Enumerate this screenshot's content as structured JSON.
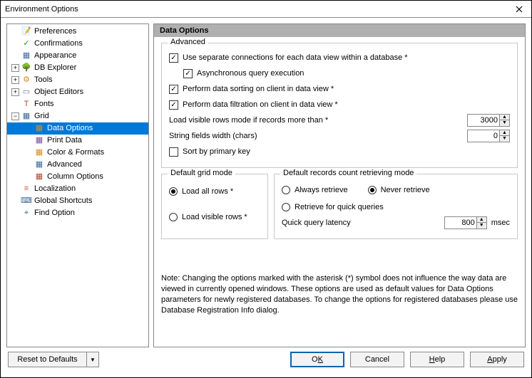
{
  "window": {
    "title": "Environment Options"
  },
  "tree": {
    "items": [
      {
        "label": "Preferences",
        "level": 0,
        "expander": "",
        "icon": "📝",
        "icon_color": "#d08030"
      },
      {
        "label": "Confirmations",
        "level": 0,
        "expander": "",
        "icon": "✓",
        "icon_color": "#2a8a2a"
      },
      {
        "label": "Appearance",
        "level": 0,
        "expander": "",
        "icon": "▦",
        "icon_color": "#4a6aa0"
      },
      {
        "label": "DB Explorer",
        "level": 0,
        "expander": "+",
        "icon": "🌳",
        "icon_color": "#3a7a3a"
      },
      {
        "label": "Tools",
        "level": 0,
        "expander": "+",
        "icon": "⚙",
        "icon_color": "#d88a20"
      },
      {
        "label": "Object Editors",
        "level": 0,
        "expander": "+",
        "icon": "▭",
        "icon_color": "#5a7a9a"
      },
      {
        "label": "Fonts",
        "level": 0,
        "expander": "",
        "icon": "T",
        "icon_color": "#b04a3a"
      },
      {
        "label": "Grid",
        "level": 0,
        "expander": "−",
        "icon": "▦",
        "icon_color": "#3a6a9a"
      },
      {
        "label": "Data Options",
        "level": 1,
        "expander": "",
        "icon": "▦",
        "icon_color": "#d88a20",
        "selected": true
      },
      {
        "label": "Print Data",
        "level": 1,
        "expander": "",
        "icon": "▦",
        "icon_color": "#7a4a9a"
      },
      {
        "label": "Color & Formats",
        "level": 1,
        "expander": "",
        "icon": "▦",
        "icon_color": "#d88a20"
      },
      {
        "label": "Advanced",
        "level": 1,
        "expander": "",
        "icon": "▦",
        "icon_color": "#3a6a9a"
      },
      {
        "label": "Column Options",
        "level": 1,
        "expander": "",
        "icon": "▦",
        "icon_color": "#b04a3a"
      },
      {
        "label": "Localization",
        "level": 0,
        "expander": "",
        "icon": "≡",
        "icon_color": "#c05a3a"
      },
      {
        "label": "Global Shortcuts",
        "level": 0,
        "expander": "",
        "icon": "⌨",
        "icon_color": "#3a6a9a"
      },
      {
        "label": "Find Option",
        "level": 0,
        "expander": "",
        "icon": "⌖",
        "icon_color": "#3a6a9a"
      }
    ]
  },
  "pane": {
    "title": "Data Options",
    "advanced": {
      "legend": "Advanced",
      "separate_conn": {
        "label": "Use separate connections for each data view within a database *",
        "checked": true
      },
      "async_query": {
        "label": "Asynchronous query execution",
        "checked": true
      },
      "sort_client": {
        "label": "Perform data sorting on client in data view *",
        "checked": true
      },
      "filter_client": {
        "label": "Perform data filtration on client in data view *",
        "checked": true
      },
      "visible_threshold": {
        "label": "Load visible rows mode if records more than *",
        "value": "3000"
      },
      "string_width": {
        "label": "String fields width (chars)",
        "value": "0"
      },
      "sort_pk": {
        "label": "Sort by primary key",
        "checked": false
      }
    },
    "grid_mode": {
      "legend": "Default grid mode",
      "load_all": {
        "label": "Load all rows *",
        "checked": true
      },
      "load_visible": {
        "label": "Load visible rows *",
        "checked": false
      }
    },
    "retrieve_mode": {
      "legend": "Default records count retrieving mode",
      "always": {
        "label": "Always retrieve",
        "checked": false
      },
      "never": {
        "label": "Never retrieve",
        "checked": true
      },
      "quick": {
        "label": "Retrieve for quick queries",
        "checked": false
      },
      "latency_label": "Quick query latency",
      "latency_value": "800",
      "latency_unit": "msec"
    },
    "note": "Note: Changing the options marked with the asterisk (*) symbol does not influence the way data are viewed in currently opened windows. These options are used as default values for Data Options parameters for newly registered databases. To change the options for registered databases please use Database Registration Info dialog."
  },
  "buttons": {
    "reset": "Reset to Defaults",
    "ok_pre": "O",
    "ok_u": "K",
    "cancel": "Cancel",
    "help_u": "H",
    "help_post": "elp",
    "apply_u": "A",
    "apply_post": "pply"
  }
}
